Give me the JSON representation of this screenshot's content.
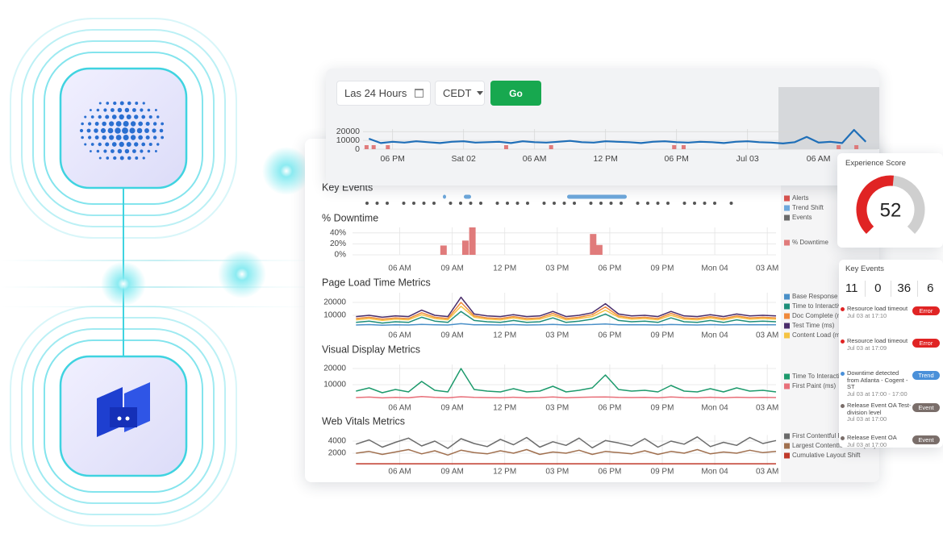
{
  "toolbar": {
    "range": "Las 24 Hours",
    "timezone": "CEDT",
    "button": "Go"
  },
  "overview": {
    "type": "line",
    "color": "#1f6fb8",
    "xlim": [
      15.5,
      59
    ],
    "xticks": [
      {
        "value": 18,
        "label": "06 PM"
      },
      {
        "value": 24,
        "label": "Sat 02"
      },
      {
        "value": 30,
        "label": "06 AM"
      },
      {
        "value": 36,
        "label": "12 PM"
      },
      {
        "value": 42,
        "label": "06 PM"
      },
      {
        "value": 48,
        "label": "Jul 03"
      },
      {
        "value": 54,
        "label": "06 AM"
      }
    ],
    "ylim": [
      0,
      23000
    ],
    "yticks": [
      0,
      10000,
      20000
    ],
    "x": [
      16,
      17,
      18,
      19,
      20,
      21,
      22,
      23,
      24,
      25,
      26,
      27,
      28,
      29,
      30,
      31,
      32,
      33,
      34,
      35,
      36,
      37,
      38,
      39,
      40,
      41,
      42,
      43,
      44,
      45,
      46,
      47,
      48,
      49,
      50,
      51,
      52,
      53,
      54,
      55,
      56,
      57,
      58
    ],
    "values": [
      12000,
      7000,
      8500,
      7500,
      9000,
      8000,
      7000,
      8500,
      9000,
      7500,
      8000,
      8500,
      7000,
      9000,
      8000,
      7500,
      8500,
      9500,
      8000,
      7500,
      9000,
      8500,
      8000,
      7000,
      8500,
      9000,
      8000,
      7500,
      8500,
      8000,
      7000,
      8500,
      9000,
      8000,
      7500,
      6500,
      8000,
      14000,
      7500,
      8500,
      7000,
      22000,
      8500
    ],
    "alerts": {
      "color": "#e07b7b",
      "x": [
        15.8,
        16.4,
        17.6,
        27.6,
        31.4,
        41.8,
        42.6,
        55.7,
        57.2
      ]
    }
  },
  "timeline": {
    "xlim": [
      3.3,
      27.5
    ],
    "xticks": [
      {
        "value": 6,
        "label": "06 AM"
      },
      {
        "value": 9,
        "label": "09 AM"
      },
      {
        "value": 12,
        "label": "12 PM"
      },
      {
        "value": 15,
        "label": "03 PM"
      },
      {
        "value": 18,
        "label": "06 PM"
      },
      {
        "value": 21,
        "label": "09 PM"
      },
      {
        "value": 24,
        "label": "Mon 04"
      },
      {
        "value": 27,
        "label": "03 AM"
      }
    ],
    "x": [
      3.5,
      4.25,
      5,
      5.75,
      6.5,
      7.25,
      8,
      8.75,
      9.5,
      10.25,
      11,
      11.75,
      12.5,
      13.25,
      14,
      14.75,
      15.5,
      16.25,
      17,
      17.75,
      18.5,
      19.25,
      20,
      20.75,
      21.5,
      22.25,
      23,
      23.75,
      24.5,
      25.25,
      26,
      26.75,
      27.5
    ]
  },
  "panels": [
    {
      "type": "events",
      "title": "Key Events",
      "legend": [
        {
          "name": "Alerts",
          "color": "#d9534f"
        },
        {
          "name": "Trend Shift",
          "color": "#6ea8dc"
        },
        {
          "name": "Events",
          "color": "#6b6b6b"
        }
      ]
    },
    {
      "type": "bar",
      "title": "% Downtime",
      "ylim": [
        0,
        50
      ],
      "yticks": [
        {
          "value": 0,
          "label": "0%"
        },
        {
          "value": 20,
          "label": "20%"
        },
        {
          "value": 40,
          "label": "40%"
        }
      ],
      "series": [
        {
          "name": "% Downtime",
          "color": "#e07b7b",
          "x": [
            8.5,
            9.75,
            10.15,
            17.05,
            17.4
          ],
          "values": [
            17,
            26,
            50,
            38,
            18
          ]
        }
      ]
    },
    {
      "type": "line",
      "title": "Page Load Time Metrics",
      "ylim": [
        0,
        27500
      ],
      "yticks": [
        10000,
        20000
      ],
      "series": [
        {
          "name": "Base Response Time (ms)",
          "color": "#4a90c8",
          "values": [
            2500,
            2800,
            2400,
            2600,
            2500,
            3000,
            2700,
            2500,
            3500,
            2700,
            2600,
            2500,
            2800,
            2500,
            2600,
            3000,
            2500,
            2700,
            2900,
            3300,
            2700,
            2600,
            2700,
            2500,
            2900,
            2600,
            2500,
            2800,
            2500,
            2800,
            2600,
            2700,
            2600
          ]
        },
        {
          "name": "Time to Interactive (ms)",
          "color": "#1f8f7a",
          "values": [
            4500,
            5500,
            4000,
            5000,
            4500,
            8500,
            5500,
            4500,
            13000,
            6000,
            5000,
            4500,
            6000,
            4500,
            5000,
            8000,
            4500,
            5500,
            7000,
            11000,
            6000,
            5000,
            5500,
            4500,
            8000,
            5000,
            4500,
            6000,
            4500,
            6500,
            5000,
            5500,
            5000
          ]
        },
        {
          "name": "Doc Complete (ms)",
          "color": "#f08a3c",
          "values": [
            7500,
            8500,
            7000,
            8000,
            7500,
            12000,
            8500,
            7500,
            20000,
            9500,
            8000,
            7500,
            9000,
            7500,
            8000,
            11500,
            7500,
            8500,
            10500,
            16500,
            9500,
            8000,
            8500,
            7500,
            11500,
            8000,
            7500,
            9000,
            7500,
            9500,
            8000,
            8500,
            8000
          ]
        },
        {
          "name": "Test Time (ms)",
          "color": "#4b2e6b",
          "values": [
            9000,
            10000,
            8500,
            9500,
            9000,
            14000,
            10000,
            9000,
            24000,
            11000,
            9500,
            9000,
            10500,
            9000,
            9500,
            13000,
            9000,
            10000,
            12000,
            19000,
            11000,
            9500,
            10000,
            9000,
            13000,
            9500,
            9000,
            10500,
            9000,
            11000,
            9500,
            10000,
            9500
          ]
        },
        {
          "name": "Content Load (ms)",
          "color": "#f5c343",
          "values": [
            6500,
            7500,
            6000,
            7000,
            6500,
            10500,
            7500,
            6500,
            17000,
            8500,
            7000,
            6500,
            8000,
            6500,
            7000,
            10000,
            6500,
            7500,
            9000,
            14000,
            8500,
            7000,
            7500,
            6500,
            10000,
            7000,
            6500,
            8000,
            6500,
            8500,
            7000,
            7500,
            7000
          ]
        }
      ]
    },
    {
      "type": "line",
      "title": "Visual Display Metrics",
      "ylim": [
        0,
        22500
      ],
      "yticks": [
        10000,
        20000
      ],
      "series": [
        {
          "name": "Time To Interactive (ms)",
          "color": "#1d9a6c",
          "values": [
            6000,
            8000,
            5000,
            7000,
            5500,
            12000,
            6500,
            5500,
            20000,
            7000,
            6000,
            5500,
            7500,
            5500,
            6000,
            9000,
            5500,
            6500,
            8000,
            16000,
            7000,
            6000,
            6500,
            5500,
            9500,
            6000,
            5500,
            7500,
            5500,
            8000,
            6000,
            6500,
            5500
          ]
        },
        {
          "name": "First Paint (ms)",
          "color": "#e8707a",
          "values": [
            2000,
            2300,
            1800,
            2100,
            1900,
            2600,
            2100,
            1900,
            2500,
            2100,
            2000,
            1900,
            2200,
            1900,
            2000,
            2400,
            1900,
            2100,
            2300,
            2400,
            2100,
            2000,
            2100,
            1900,
            2400,
            2000,
            1900,
            2200,
            1900,
            2200,
            2000,
            2100,
            2000
          ]
        }
      ]
    },
    {
      "type": "line",
      "title": "Web Vitals Metrics",
      "ylim": [
        0,
        5000
      ],
      "yticks": [
        2000,
        4000
      ],
      "series": [
        {
          "name": "First Contentful Paint (ms)",
          "color": "#6b6b6b",
          "values": [
            3500,
            4200,
            3000,
            3800,
            4500,
            3200,
            4000,
            2800,
            4400,
            3600,
            3100,
            4300,
            3400,
            4600,
            3000,
            3900,
            3300,
            4500,
            2900,
            4100,
            3700,
            3200,
            4400,
            3000,
            4000,
            3500,
            4700,
            3100,
            3800,
            3300,
            4600,
            3600,
            4100
          ]
        },
        {
          "name": "Largest Contentful Paint (ms)",
          "color": "#a0704f",
          "values": [
            2000,
            2300,
            1800,
            2200,
            2600,
            1900,
            2400,
            1700,
            2500,
            2100,
            1900,
            2400,
            2000,
            2600,
            1800,
            2200,
            2000,
            2500,
            1800,
            2300,
            2100,
            1900,
            2400,
            1800,
            2300,
            2000,
            2600,
            1900,
            2200,
            2000,
            2500,
            2100,
            2300
          ]
        },
        {
          "name": "Cumulative Layout Shift",
          "color": "#c0392b",
          "values": [
            250,
            250,
            250,
            250,
            250,
            250,
            250,
            250,
            250,
            250,
            250,
            250,
            250,
            250,
            250,
            250,
            250,
            250,
            250,
            250,
            250,
            250,
            250,
            250,
            250,
            250,
            250,
            250,
            250,
            250,
            250,
            250,
            250
          ]
        }
      ]
    }
  ],
  "experience": {
    "title": "Experience Score",
    "score": 52,
    "range": [
      0,
      100
    ]
  },
  "key_events": {
    "title": "Key Events",
    "counts": [
      11,
      0,
      36,
      6
    ],
    "items": [
      {
        "title": "Resource load timeout",
        "time": "Jul 03 at 17:10",
        "tag": "Error"
      },
      {
        "title": "Resource load timeout",
        "time": "Jul 03 at 17:09",
        "tag": "Error"
      },
      {
        "title": "Downtime detected from Atlanta - Cogent -ST",
        "time": "Jul 03 at 17:00 - 17:00",
        "tag": "Trend"
      },
      {
        "title": "Release Event OA Test-division level",
        "time": "Jul 03 at 17:00",
        "tag": "Event"
      },
      {
        "title": "Release Event OA",
        "time": "Jul 03 at 17:00",
        "tag": "Event"
      }
    ]
  }
}
